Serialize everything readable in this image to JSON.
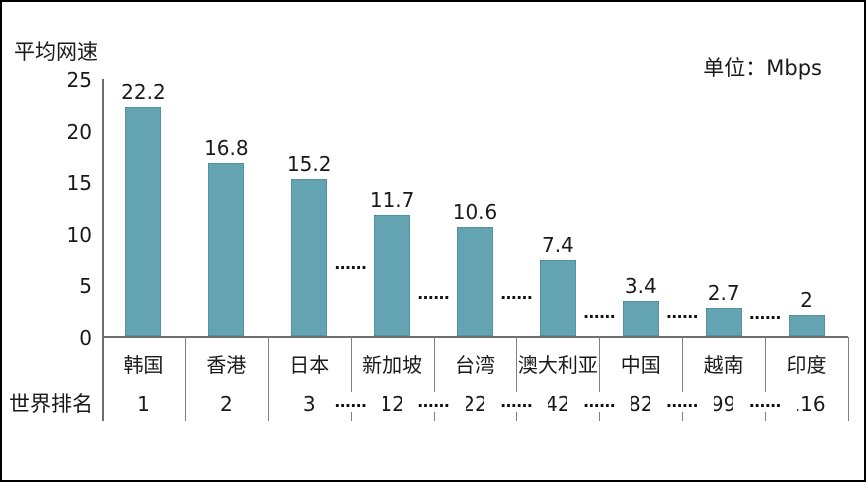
{
  "labels": {
    "y_axis_title": "平均网速",
    "unit": "单位：Mbps",
    "rank_row": "世界排名"
  },
  "chart_data": {
    "type": "bar",
    "title": "",
    "ylabel": "平均网速",
    "unit_note": "单位：Mbps",
    "categories": [
      "韩国",
      "香港",
      "日本",
      "新加坡",
      "台湾",
      "澳大利亚",
      "中国",
      "越南",
      "印度"
    ],
    "values": [
      22.2,
      16.8,
      15.2,
      11.7,
      10.6,
      7.4,
      3.4,
      2.7,
      2
    ],
    "value_labels": [
      "22.2",
      "16.8",
      "15.2",
      "11.7",
      "10.6",
      "7.4",
      "3.4",
      "2.7",
      "2"
    ],
    "rank_row_label": "世界排名",
    "world_ranks": [
      "1",
      "2",
      "3",
      "12",
      "22",
      "42",
      "82",
      "99",
      "116"
    ],
    "yticks": [
      0,
      5,
      10,
      15,
      20,
      25
    ],
    "ylim": [
      0,
      25
    ],
    "grid": false,
    "legend": "none",
    "bar_color": "#64a3b2",
    "bar_border_color": "#45818e",
    "axis_color": "#6e6e6e",
    "ellipsis_text": "……",
    "ellipsis_gaps": [
      {
        "after_index": 2,
        "height": 6.6
      },
      {
        "after_index": 3,
        "height": 3.7
      },
      {
        "after_index": 4,
        "height": 3.7
      },
      {
        "after_index": 5,
        "height": 1.8
      },
      {
        "after_index": 6,
        "height": 1.8
      },
      {
        "after_index": 7,
        "height": 1.7
      }
    ]
  }
}
